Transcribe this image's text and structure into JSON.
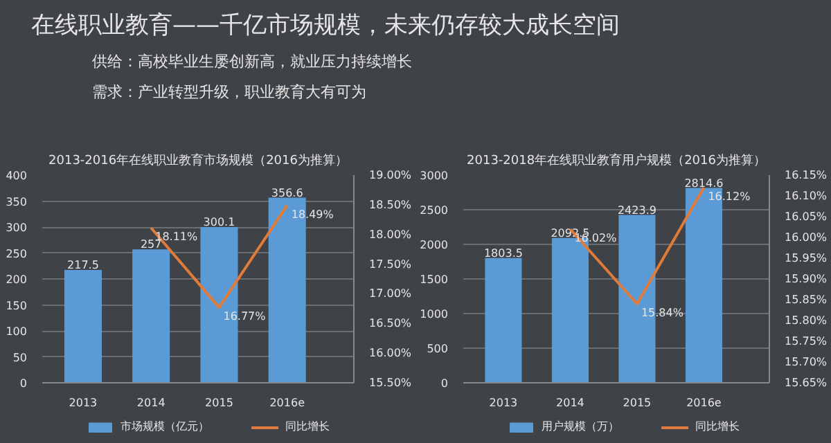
{
  "chart_data": [
    {
      "type": "other",
      "title": "在线职业教育——千亿市场规模，未来仍存较大成长空间",
      "annotations": [
        "供给：高校毕业生屡创新高，就业压力持续增长",
        "需求：产业转型升级，职业教育大有可为"
      ]
    },
    {
      "type": "bar",
      "title": "2013-2016年在线职业教育市场规模（2016为推算）",
      "categories": [
        "2013",
        "2014",
        "2015",
        "2016e"
      ],
      "series": [
        {
          "name": "市场规模（亿元）",
          "type": "bar",
          "color": "#5b9bd5",
          "values": [
            217.5,
            257,
            300.1,
            356.6
          ]
        },
        {
          "name": "同比增长",
          "type": "line",
          "axis": "y2",
          "color": "#e07b39",
          "values": [
            null,
            18.11,
            16.77,
            18.49
          ],
          "value_labels": [
            null,
            "18.11%",
            "16.77%",
            "18.49%"
          ]
        }
      ],
      "ylim": [
        0,
        400
      ],
      "yticks": [
        0,
        50,
        100,
        150,
        200,
        250,
        300,
        350,
        400
      ],
      "y2lim": [
        15.5,
        19.0
      ],
      "y2ticks": [
        {
          "value": 15.5,
          "label": "15.50%"
        },
        {
          "value": 16.0,
          "label": "16.00%"
        },
        {
          "value": 16.5,
          "label": "16.50%"
        },
        {
          "value": 17.0,
          "label": "17.00%"
        },
        {
          "value": 17.5,
          "label": "17.50%"
        },
        {
          "value": 18.0,
          "label": "18.00%"
        },
        {
          "value": 18.5,
          "label": "18.50%"
        },
        {
          "value": 19.0,
          "label": "19.00%"
        }
      ],
      "data_labels": true,
      "grid": "y",
      "legend": "bottom"
    },
    {
      "type": "bar",
      "title": "2013-2018年在线职业教育用户规模（2016为推算）",
      "categories": [
        "2013",
        "2014",
        "2015",
        "2016e"
      ],
      "series": [
        {
          "name": "用户规模（万）",
          "type": "bar",
          "color": "#5b9bd5",
          "values": [
            1803.5,
            2092.5,
            2423.9,
            2814.6
          ]
        },
        {
          "name": "同比增长",
          "type": "line",
          "axis": "y2",
          "color": "#e07b39",
          "values": [
            null,
            16.02,
            15.84,
            16.12
          ],
          "value_labels": [
            null,
            "16.02%",
            "15.84%",
            "16.12%"
          ]
        }
      ],
      "ylim": [
        0,
        3000
      ],
      "yticks": [
        0,
        500,
        1000,
        1500,
        2000,
        2500,
        3000
      ],
      "y2lim": [
        15.65,
        16.15
      ],
      "y2ticks": [
        {
          "value": 15.65,
          "label": "15.65%"
        },
        {
          "value": 15.7,
          "label": "15.70%"
        },
        {
          "value": 15.75,
          "label": "15.75%"
        },
        {
          "value": 15.8,
          "label": "15.80%"
        },
        {
          "value": 15.85,
          "label": "15.85%"
        },
        {
          "value": 15.9,
          "label": "15.90%"
        },
        {
          "value": 15.95,
          "label": "15.95%"
        },
        {
          "value": 16.0,
          "label": "16.00%"
        },
        {
          "value": 16.05,
          "label": "16.05%"
        },
        {
          "value": 16.1,
          "label": "16.10%"
        },
        {
          "value": 16.15,
          "label": "16.15%"
        }
      ],
      "data_labels": true,
      "grid": "y",
      "legend": "bottom"
    }
  ]
}
